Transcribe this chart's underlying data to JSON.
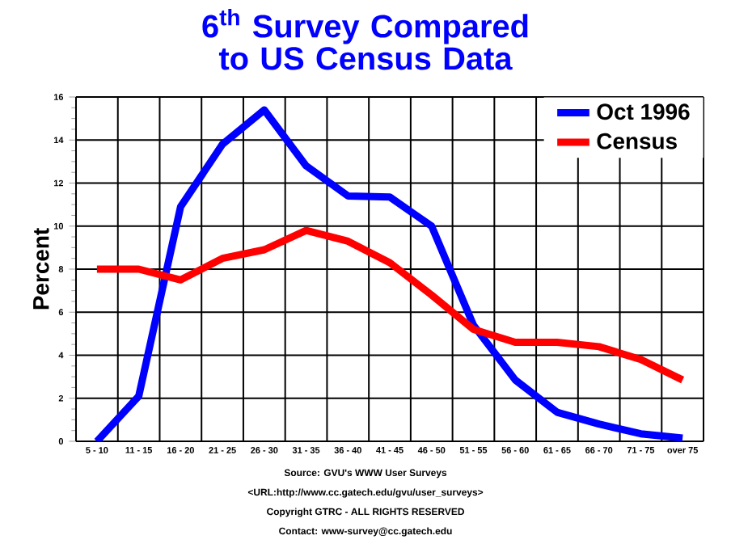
{
  "chart_data": {
    "type": "line",
    "title": "6$^{th}$ Survey Compared to US Census Data",
    "ylabel": "Percent",
    "categories": [
      "5 - 10",
      "11 - 15",
      "16 - 20",
      "21 - 25",
      "26 - 30",
      "31 - 35",
      "36 - 40",
      "41 - 45",
      "46 - 50",
      "51 - 55",
      "56 - 60",
      "61 - 65",
      "66 - 70",
      "71 - 75",
      "over 75"
    ],
    "series": [
      {
        "name": "Oct 1996",
        "color": "#0000ff",
        "values": [
          0,
          2.1,
          10.9,
          13.8,
          15.4,
          12.8,
          11.4,
          11.35,
          10.0,
          5.4,
          2.85,
          1.35,
          0.8,
          0.35,
          0.15
        ]
      },
      {
        "name": "Census",
        "color": "#ff0000",
        "values": [
          8.0,
          8.0,
          7.5,
          8.5,
          8.9,
          9.8,
          9.3,
          8.3,
          6.8,
          5.2,
          4.6,
          4.6,
          4.4,
          3.8,
          2.85
        ]
      }
    ],
    "ylim": [
      0,
      16
    ],
    "yticks": [
      0,
      2,
      4,
      6,
      8,
      10,
      12,
      14,
      16
    ],
    "grid": true,
    "legend": "top right",
    "marker": "none",
    "line_style": "solid",
    "annotations": [
      "Source: GVU's WWW User Surveys",
      "<URL:http://www.cc.gatech.edu/gvu/user_surveys>",
      "Copyright GTRC - ALL RIGHTS RESERVED",
      "Contact: www-survey@cc.gatech.edu"
    ]
  }
}
